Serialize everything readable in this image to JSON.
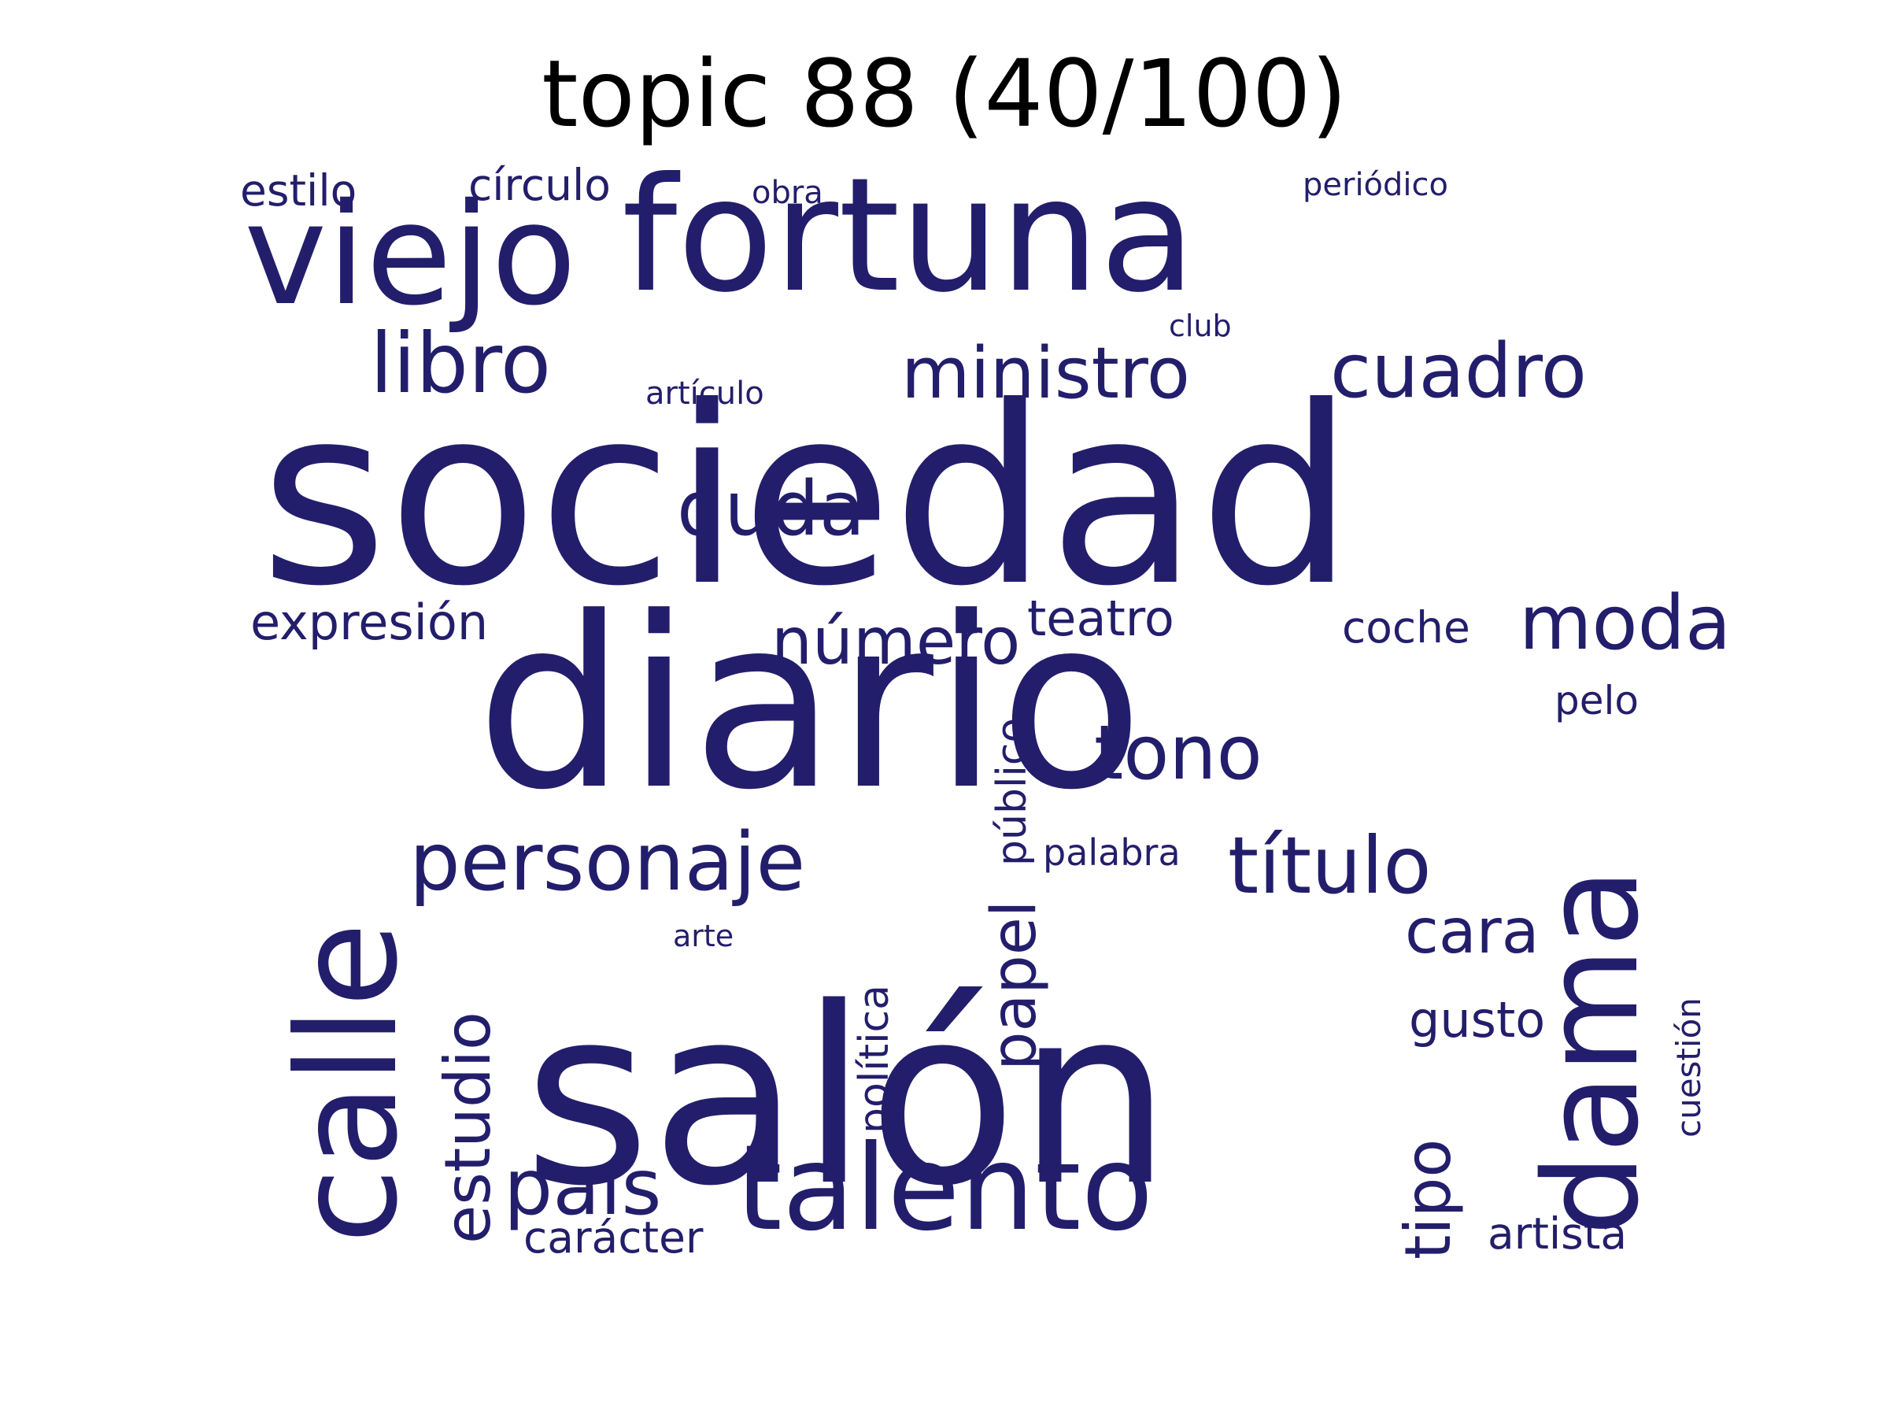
{
  "title": "topic 88 (40/100)",
  "colors": {
    "word": "#231e6b",
    "title": "#000000",
    "background": "#ffffff"
  },
  "words": [
    {
      "text": "sociedad",
      "orientation": "horizontal",
      "prominence": 1.0
    },
    {
      "text": "diario",
      "orientation": "horizontal",
      "prominence": 0.98
    },
    {
      "text": "salón",
      "orientation": "horizontal",
      "prominence": 0.95
    },
    {
      "text": "fortuna",
      "orientation": "horizontal",
      "prominence": 0.7
    },
    {
      "text": "viejo",
      "orientation": "horizontal",
      "prominence": 0.62
    },
    {
      "text": "calle",
      "orientation": "vertical",
      "prominence": 0.62
    },
    {
      "text": "dama",
      "orientation": "vertical",
      "prominence": 0.58
    },
    {
      "text": "talento",
      "orientation": "horizontal",
      "prominence": 0.52
    },
    {
      "text": "personaje",
      "orientation": "horizontal",
      "prominence": 0.34
    },
    {
      "text": "título",
      "orientation": "horizontal",
      "prominence": 0.34
    },
    {
      "text": "país",
      "orientation": "horizontal",
      "prominence": 0.34
    },
    {
      "text": "libro",
      "orientation": "horizontal",
      "prominence": 0.33
    },
    {
      "text": "cuadro",
      "orientation": "horizontal",
      "prominence": 0.31
    },
    {
      "text": "ministro",
      "orientation": "horizontal",
      "prominence": 0.3
    },
    {
      "text": "duda",
      "orientation": "horizontal",
      "prominence": 0.3
    },
    {
      "text": "tono",
      "orientation": "horizontal",
      "prominence": 0.3
    },
    {
      "text": "moda",
      "orientation": "horizontal",
      "prominence": 0.3
    },
    {
      "text": "estudio",
      "orientation": "vertical",
      "prominence": 0.27
    },
    {
      "text": "número",
      "orientation": "horizontal",
      "prominence": 0.26
    },
    {
      "text": "papel",
      "orientation": "vertical",
      "prominence": 0.25
    },
    {
      "text": "tipo",
      "orientation": "vertical",
      "prominence": 0.24
    },
    {
      "text": "cara",
      "orientation": "horizontal",
      "prominence": 0.23
    },
    {
      "text": "teatro",
      "orientation": "horizontal",
      "prominence": 0.2
    },
    {
      "text": "expresión",
      "orientation": "horizontal",
      "prominence": 0.2
    },
    {
      "text": "gusto",
      "orientation": "horizontal",
      "prominence": 0.2
    },
    {
      "text": "artista",
      "orientation": "horizontal",
      "prominence": 0.18
    },
    {
      "text": "carácter",
      "orientation": "horizontal",
      "prominence": 0.18
    },
    {
      "text": "público",
      "orientation": "vertical",
      "prominence": 0.18
    },
    {
      "text": "política",
      "orientation": "vertical",
      "prominence": 0.18
    },
    {
      "text": "estilo",
      "orientation": "horizontal",
      "prominence": 0.18
    },
    {
      "text": "círculo",
      "orientation": "horizontal",
      "prominence": 0.18
    },
    {
      "text": "coche",
      "orientation": "horizontal",
      "prominence": 0.17
    },
    {
      "text": "pelo",
      "orientation": "horizontal",
      "prominence": 0.17
    },
    {
      "text": "palabra",
      "orientation": "horizontal",
      "prominence": 0.16
    },
    {
      "text": "cuestión",
      "orientation": "vertical",
      "prominence": 0.14
    },
    {
      "text": "artículo",
      "orientation": "horizontal",
      "prominence": 0.13
    },
    {
      "text": "obra",
      "orientation": "horizontal",
      "prominence": 0.13
    },
    {
      "text": "club",
      "orientation": "horizontal",
      "prominence": 0.13
    },
    {
      "text": "periódico",
      "orientation": "horizontal",
      "prominence": 0.13
    },
    {
      "text": "arte",
      "orientation": "horizontal",
      "prominence": 0.12
    }
  ]
}
